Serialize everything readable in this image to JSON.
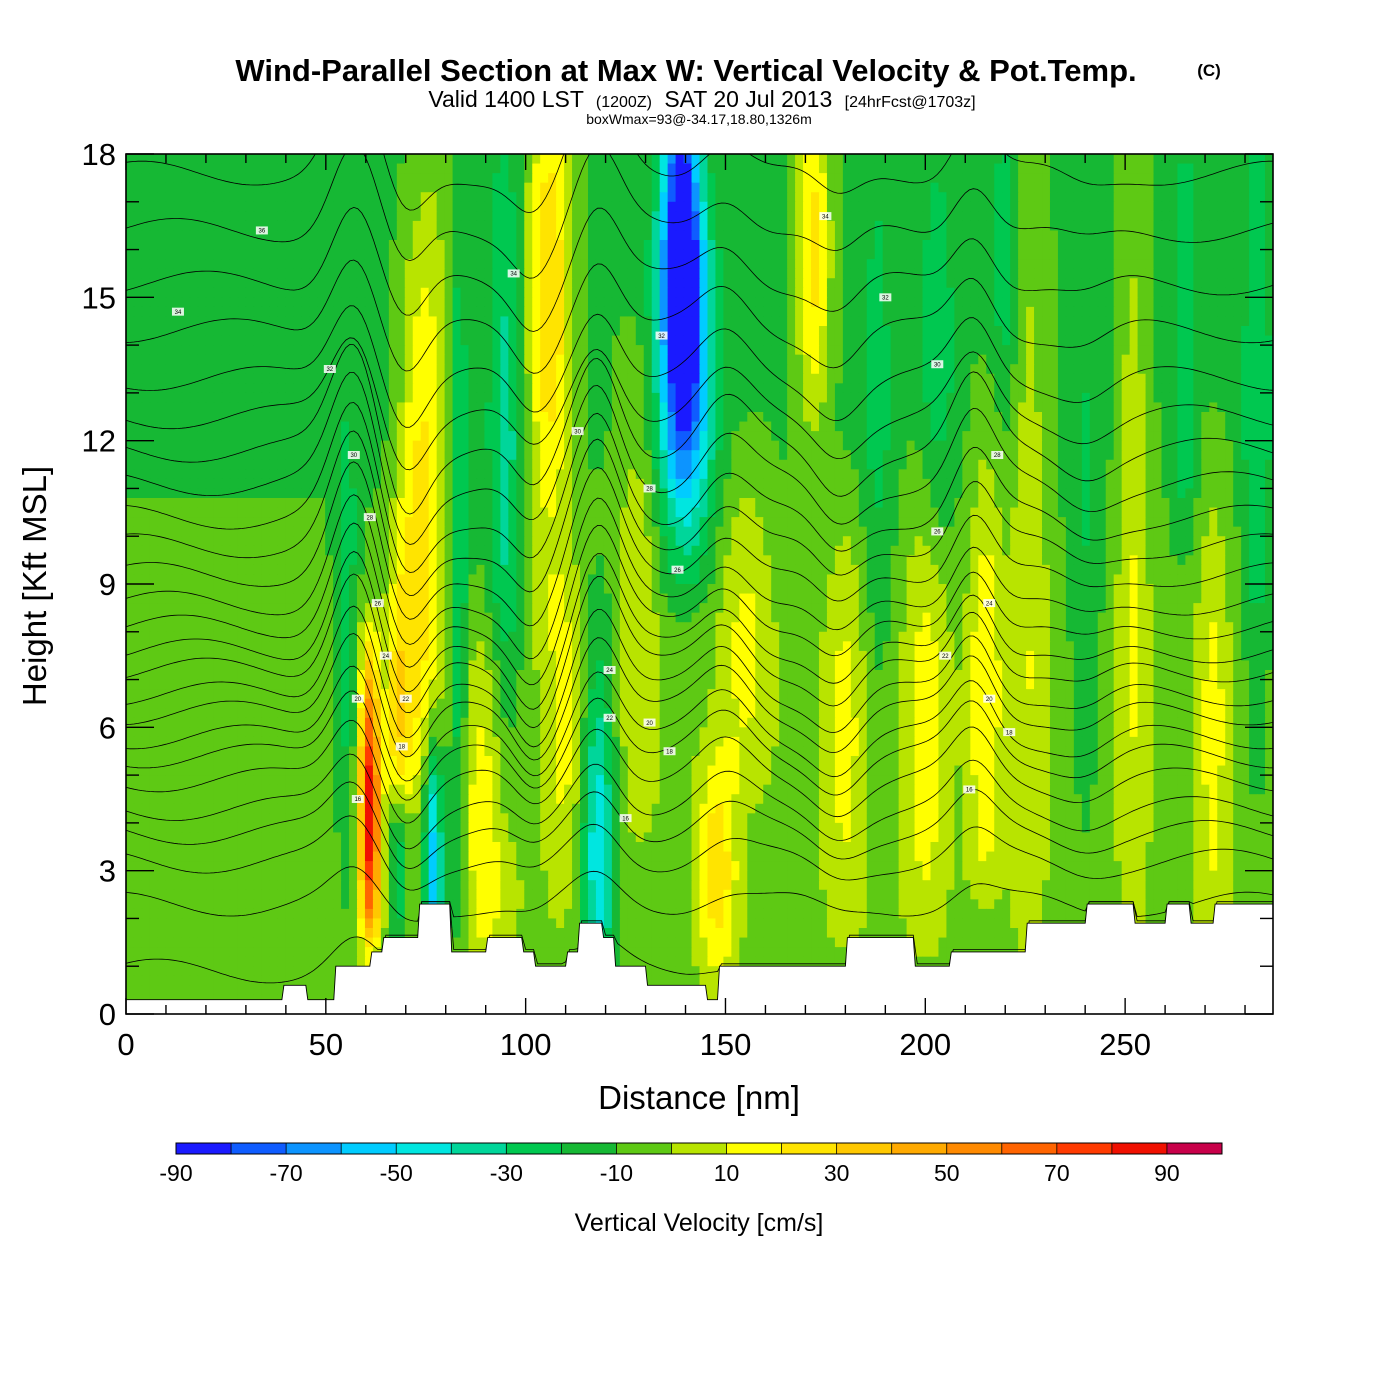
{
  "chart_data": {
    "type": "heatmap",
    "title": "Wind-Parallel Section at Max W: Vertical Velocity & Pot.Temp.",
    "title_mark": "(C)",
    "subtitle": {
      "valid": "Valid 1400 LST",
      "zulu": "(1200Z)",
      "date": "SAT 20 Jul 2013",
      "forecast": "[24hrFcst@1703z]"
    },
    "box_note": "boxWmax=93@-34.17,18.80,1326m",
    "xlabel": "Distance [nm]",
    "ylabel": "Height [Kft MSL]",
    "xlim": [
      0,
      287
    ],
    "ylim": [
      0,
      18
    ],
    "x_ticks": [
      0,
      50,
      100,
      150,
      200,
      250
    ],
    "y_ticks": [
      0,
      3,
      6,
      9,
      12,
      15,
      18
    ],
    "colorbar": {
      "title": "Vertical Velocity [cm/s]",
      "bounds": [
        -90,
        -80,
        -70,
        -60,
        -50,
        -40,
        -30,
        -20,
        -10,
        0,
        10,
        20,
        30,
        40,
        50,
        60,
        70,
        80,
        90,
        100
      ],
      "tick_labels": [
        "-90",
        "-70",
        "-50",
        "-30",
        "-10",
        "10",
        "30",
        "50",
        "70",
        "90"
      ],
      "colors": [
        "#1a1aff",
        "#0f5cff",
        "#0c94ff",
        "#00ccff",
        "#00e6e0",
        "#00d69a",
        "#00c850",
        "#16b834",
        "#5ec914",
        "#b8e400",
        "#ffff00",
        "#ffe400",
        "#ffc800",
        "#ffaa00",
        "#ff8a00",
        "#ff6400",
        "#ff3a00",
        "#f01000",
        "#c8004a"
      ]
    },
    "w_field_cm_s": {
      "background_profile": [
        [
          0,
          -4
        ],
        [
          3,
          -4
        ],
        [
          7,
          -4
        ],
        [
          9,
          -7
        ],
        [
          12,
          -12
        ],
        [
          18,
          -12
        ]
      ],
      "features": [
        {
          "x": 55,
          "z": 8.0,
          "w": -20,
          "sx": 2.0,
          "z_min": 2.0,
          "z_max": 12.0
        },
        {
          "x": 61,
          "z": 4.2,
          "w": 93,
          "sx": 1.8,
          "z_min": 2.0,
          "z_max": 8.0
        },
        {
          "x": 68,
          "z": 6.0,
          "w": 28,
          "sx": 2.0,
          "z_min": 5.0,
          "z_max": 12.0
        },
        {
          "x": 68,
          "z": 3.0,
          "w": -22,
          "sx": 1.5,
          "z_min": 1.0,
          "z_max": 5.0
        },
        {
          "x": 72,
          "z": 9.0,
          "w": 20,
          "sx": 3.0,
          "z_min": 5.0,
          "z_max": 16.0
        },
        {
          "x": 77,
          "z": 3.0,
          "w": -52,
          "sx": 1.6,
          "z_min": 1.0,
          "z_max": 6.5
        },
        {
          "x": 76,
          "z": 12.0,
          "w": 24,
          "sx": 4.0,
          "z_min": 6.0,
          "z_max": 18.0
        },
        {
          "x": 83,
          "z": 8.0,
          "w": -26,
          "sx": 1.8,
          "z_min": 2.0,
          "z_max": 18.0
        },
        {
          "x": 90,
          "z": 4.0,
          "w": 22,
          "sx": 5.0,
          "z_min": 1.0,
          "z_max": 8.0
        },
        {
          "x": 95,
          "z": 11.0,
          "w": -24,
          "sx": 3.0,
          "z_min": 4.0,
          "z_max": 18.0
        },
        {
          "x": 106,
          "z": 15.0,
          "w": 42,
          "sx": 4.0,
          "z_min": 8.0,
          "z_max": 18.0
        },
        {
          "x": 110,
          "z": 6.0,
          "w": 18,
          "sx": 4.0,
          "z_min": 2.0,
          "z_max": 9.0
        },
        {
          "x": 118,
          "z": 3.5,
          "w": -44,
          "sx": 3.0,
          "z_min": 1.0,
          "z_max": 9.0
        },
        {
          "x": 128,
          "z": 9.0,
          "w": 16,
          "sx": 4.0,
          "z_min": 4.0,
          "z_max": 14.0
        },
        {
          "x": 139,
          "z": 16.5,
          "w": -85,
          "sx": 3.5,
          "z_min": 11.0,
          "z_max": 18.0
        },
        {
          "x": 140,
          "z": 13.0,
          "w": -50,
          "sx": 5.0,
          "z_min": 9.0,
          "z_max": 16.0
        },
        {
          "x": 148,
          "z": 3.0,
          "w": 32,
          "sx": 3.5,
          "z_min": 1.0,
          "z_max": 5.5
        },
        {
          "x": 155,
          "z": 8.0,
          "w": 18,
          "sx": 5.0,
          "z_min": 5.0,
          "z_max": 12.0
        },
        {
          "x": 172,
          "z": 16.0,
          "w": 36,
          "sx": 3.0,
          "z_min": 11.0,
          "z_max": 18.0
        },
        {
          "x": 180,
          "z": 6.0,
          "w": 18,
          "sx": 4.0,
          "z_min": 2.0,
          "z_max": 11.0
        },
        {
          "x": 188,
          "z": 12.0,
          "w": -12,
          "sx": 3.0,
          "z_min": 4.0,
          "z_max": 18.0
        },
        {
          "x": 200,
          "z": 6.0,
          "w": 20,
          "sx": 4.0,
          "z_min": 2.0,
          "z_max": 12.0
        },
        {
          "x": 203,
          "z": 14.0,
          "w": -16,
          "sx": 3.0,
          "z_min": 10.0,
          "z_max": 18.0
        },
        {
          "x": 215,
          "z": 7.0,
          "w": 24,
          "sx": 3.0,
          "z_min": 3.0,
          "z_max": 13.0
        },
        {
          "x": 220,
          "z": 16.0,
          "w": -18,
          "sx": 2.0,
          "z_min": 12.0,
          "z_max": 18.0
        },
        {
          "x": 226,
          "z": 10.0,
          "w": 16,
          "sx": 3.5,
          "z_min": 1.0,
          "z_max": 18.0
        },
        {
          "x": 240,
          "z": 9.0,
          "w": -12,
          "sx": 3.0,
          "z_min": 3.0,
          "z_max": 15.0
        },
        {
          "x": 252,
          "z": 10.0,
          "w": 18,
          "sx": 3.0,
          "z_min": 2.0,
          "z_max": 18.0
        },
        {
          "x": 265,
          "z": 14.0,
          "w": -20,
          "sx": 2.0,
          "z_min": 10.0,
          "z_max": 18.0
        },
        {
          "x": 272,
          "z": 6.0,
          "w": 18,
          "sx": 3.0,
          "z_min": 1.0,
          "z_max": 12.0
        },
        {
          "x": 283,
          "z": 12.0,
          "w": -18,
          "sx": 2.5,
          "z_min": 4.0,
          "z_max": 18.0
        }
      ]
    },
    "terrain_kft": {
      "x": [
        0,
        39,
        39.5,
        45,
        45.5,
        52,
        52.5,
        61,
        61.5,
        64,
        64.5,
        73,
        73.5,
        81,
        81.5,
        90,
        90.5,
        99,
        99.5,
        102,
        102.5,
        110,
        110.5,
        113,
        113.5,
        119,
        119.5,
        122,
        122.5,
        130,
        130.5,
        145,
        145.5,
        148,
        148.5,
        180,
        180.5,
        197,
        197.5,
        206,
        206.5,
        225,
        225.5,
        240,
        240.5,
        252,
        252.5,
        260,
        260.5,
        266,
        266.5,
        272,
        272.5,
        287
      ],
      "height": [
        0.3,
        0.3,
        0.6,
        0.6,
        0.3,
        0.3,
        1.0,
        1.0,
        1.3,
        1.3,
        1.6,
        1.6,
        2.3,
        2.3,
        1.3,
        1.3,
        1.6,
        1.6,
        1.3,
        1.3,
        1.0,
        1.0,
        1.3,
        1.3,
        1.9,
        1.9,
        1.6,
        1.6,
        1.0,
        1.0,
        0.6,
        0.6,
        0.3,
        0.3,
        1.0,
        1.0,
        1.6,
        1.6,
        1.0,
        1.0,
        1.3,
        1.3,
        1.9,
        1.9,
        2.3,
        2.3,
        1.9,
        1.9,
        2.3,
        2.3,
        1.9,
        1.9,
        2.3,
        2.3
      ]
    },
    "theta_contours": {
      "levels": [
        12,
        13,
        14,
        15,
        16,
        17,
        18,
        19,
        20,
        21,
        22,
        23,
        24,
        25,
        26,
        27,
        28,
        29,
        30,
        31,
        32,
        33,
        34,
        35,
        36
      ],
      "levels_z_kft_upstream": [
        0.9,
        2.3,
        3.2,
        3.8,
        4.3,
        4.9,
        5.4,
        5.8,
        6.3,
        6.7,
        7.2,
        7.6,
        8.1,
        8.6,
        9.2,
        9.8,
        10.4,
        11.1,
        11.8,
        12.5,
        13.3,
        14.3,
        15.3,
        16.4,
        17.6
      ],
      "labels": [
        {
          "text": "36",
          "x": 34,
          "z": 16.4
        },
        {
          "text": "34",
          "x": 13,
          "z": 14.7
        },
        {
          "text": "32",
          "x": 51,
          "z": 13.5
        },
        {
          "text": "30",
          "x": 57,
          "z": 11.7
        },
        {
          "text": "28",
          "x": 61,
          "z": 10.4
        },
        {
          "text": "26",
          "x": 63,
          "z": 8.6
        },
        {
          "text": "24",
          "x": 65,
          "z": 7.5
        },
        {
          "text": "22",
          "x": 70,
          "z": 6.6
        },
        {
          "text": "20",
          "x": 58,
          "z": 6.6
        },
        {
          "text": "18",
          "x": 69,
          "z": 5.6
        },
        {
          "text": "16",
          "x": 58,
          "z": 4.5
        },
        {
          "text": "34",
          "x": 97,
          "z": 15.5
        },
        {
          "text": "32",
          "x": 134,
          "z": 14.2
        },
        {
          "text": "30",
          "x": 113,
          "z": 12.2
        },
        {
          "text": "28",
          "x": 131,
          "z": 11.0
        },
        {
          "text": "26",
          "x": 138,
          "z": 9.3
        },
        {
          "text": "24",
          "x": 121,
          "z": 7.2
        },
        {
          "text": "22",
          "x": 121,
          "z": 6.2
        },
        {
          "text": "20",
          "x": 131,
          "z": 6.1
        },
        {
          "text": "18",
          "x": 136,
          "z": 5.5
        },
        {
          "text": "16",
          "x": 125,
          "z": 4.1
        },
        {
          "text": "34",
          "x": 175,
          "z": 16.7
        },
        {
          "text": "32",
          "x": 190,
          "z": 15.0
        },
        {
          "text": "30",
          "x": 203,
          "z": 13.6
        },
        {
          "text": "28",
          "x": 218,
          "z": 11.7
        },
        {
          "text": "26",
          "x": 203,
          "z": 10.1
        },
        {
          "text": "24",
          "x": 216,
          "z": 8.6
        },
        {
          "text": "22",
          "x": 205,
          "z": 7.5
        },
        {
          "text": "20",
          "x": 216,
          "z": 6.6
        },
        {
          "text": "18",
          "x": 221,
          "z": 5.9
        },
        {
          "text": "16",
          "x": 211,
          "z": 4.7
        }
      ]
    }
  }
}
